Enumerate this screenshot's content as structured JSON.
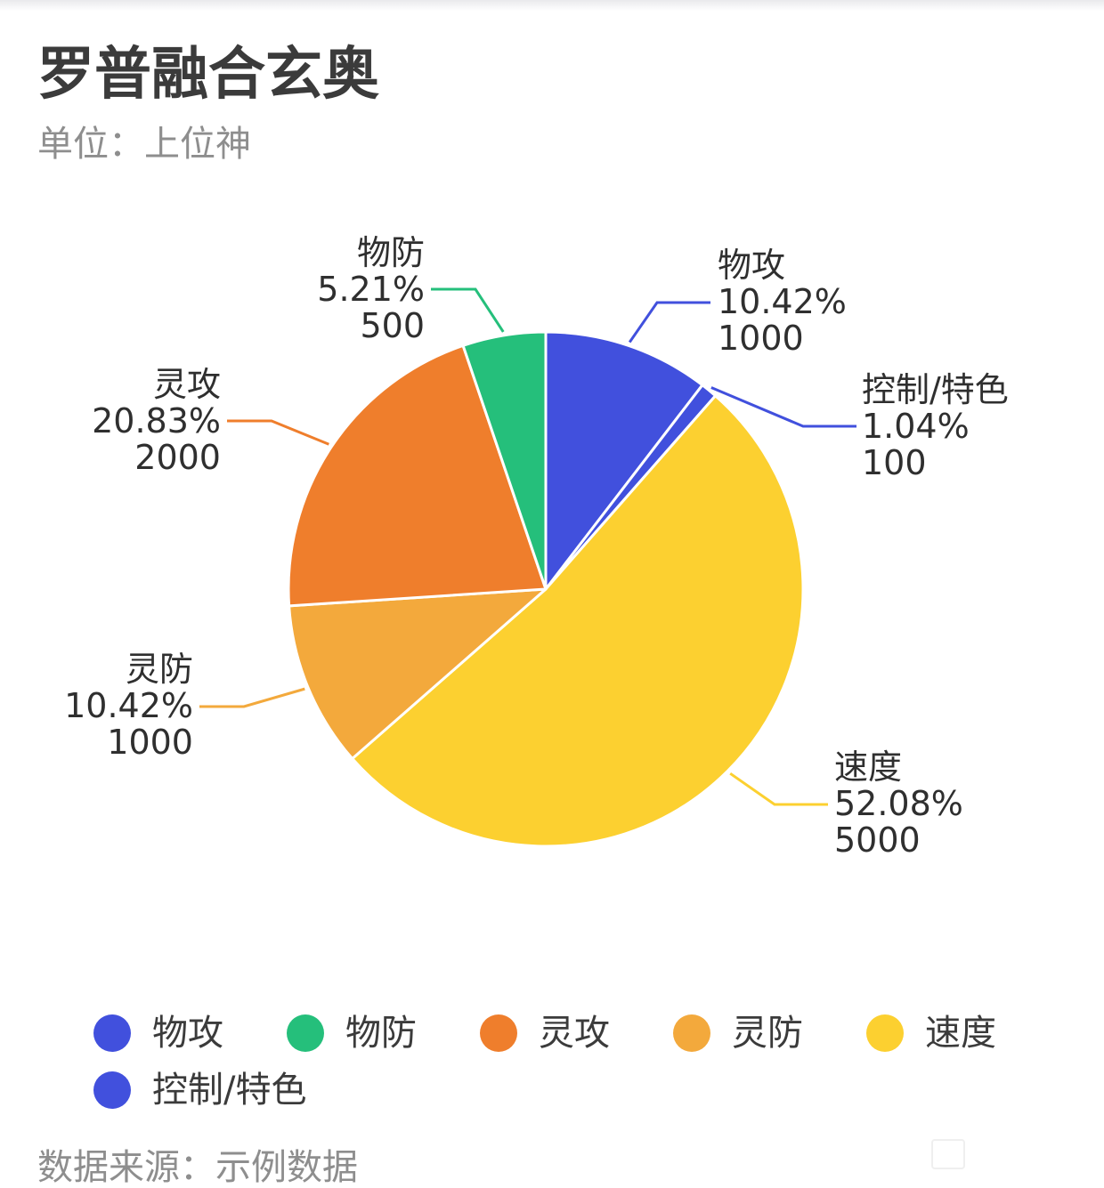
{
  "title": "罗普融合玄奥",
  "subtitle": "单位：上位神",
  "source": "数据来源：示例数据",
  "chart_data": {
    "type": "pie",
    "start_angle_deg": 0,
    "direction": "clockwise",
    "slices": [
      {
        "name": "物攻",
        "value": 1000,
        "percent": "10.42%",
        "color": "#4150dd"
      },
      {
        "name": "控制/特色",
        "value": 100,
        "percent": "1.04%",
        "color": "#4150dd"
      },
      {
        "name": "速度",
        "value": 5000,
        "percent": "52.08%",
        "color": "#fcd030"
      },
      {
        "name": "灵防",
        "value": 1000,
        "percent": "10.42%",
        "color": "#f3a93c"
      },
      {
        "name": "灵攻",
        "value": 2000,
        "percent": "20.83%",
        "color": "#ef7e2c"
      },
      {
        "name": "物防",
        "value": 500,
        "percent": "5.21%",
        "color": "#25bf7b"
      }
    ],
    "legend": {
      "placement": "bottom",
      "order": [
        "物攻",
        "物防",
        "灵攻",
        "灵防",
        "速度",
        "控制/特色"
      ]
    }
  }
}
